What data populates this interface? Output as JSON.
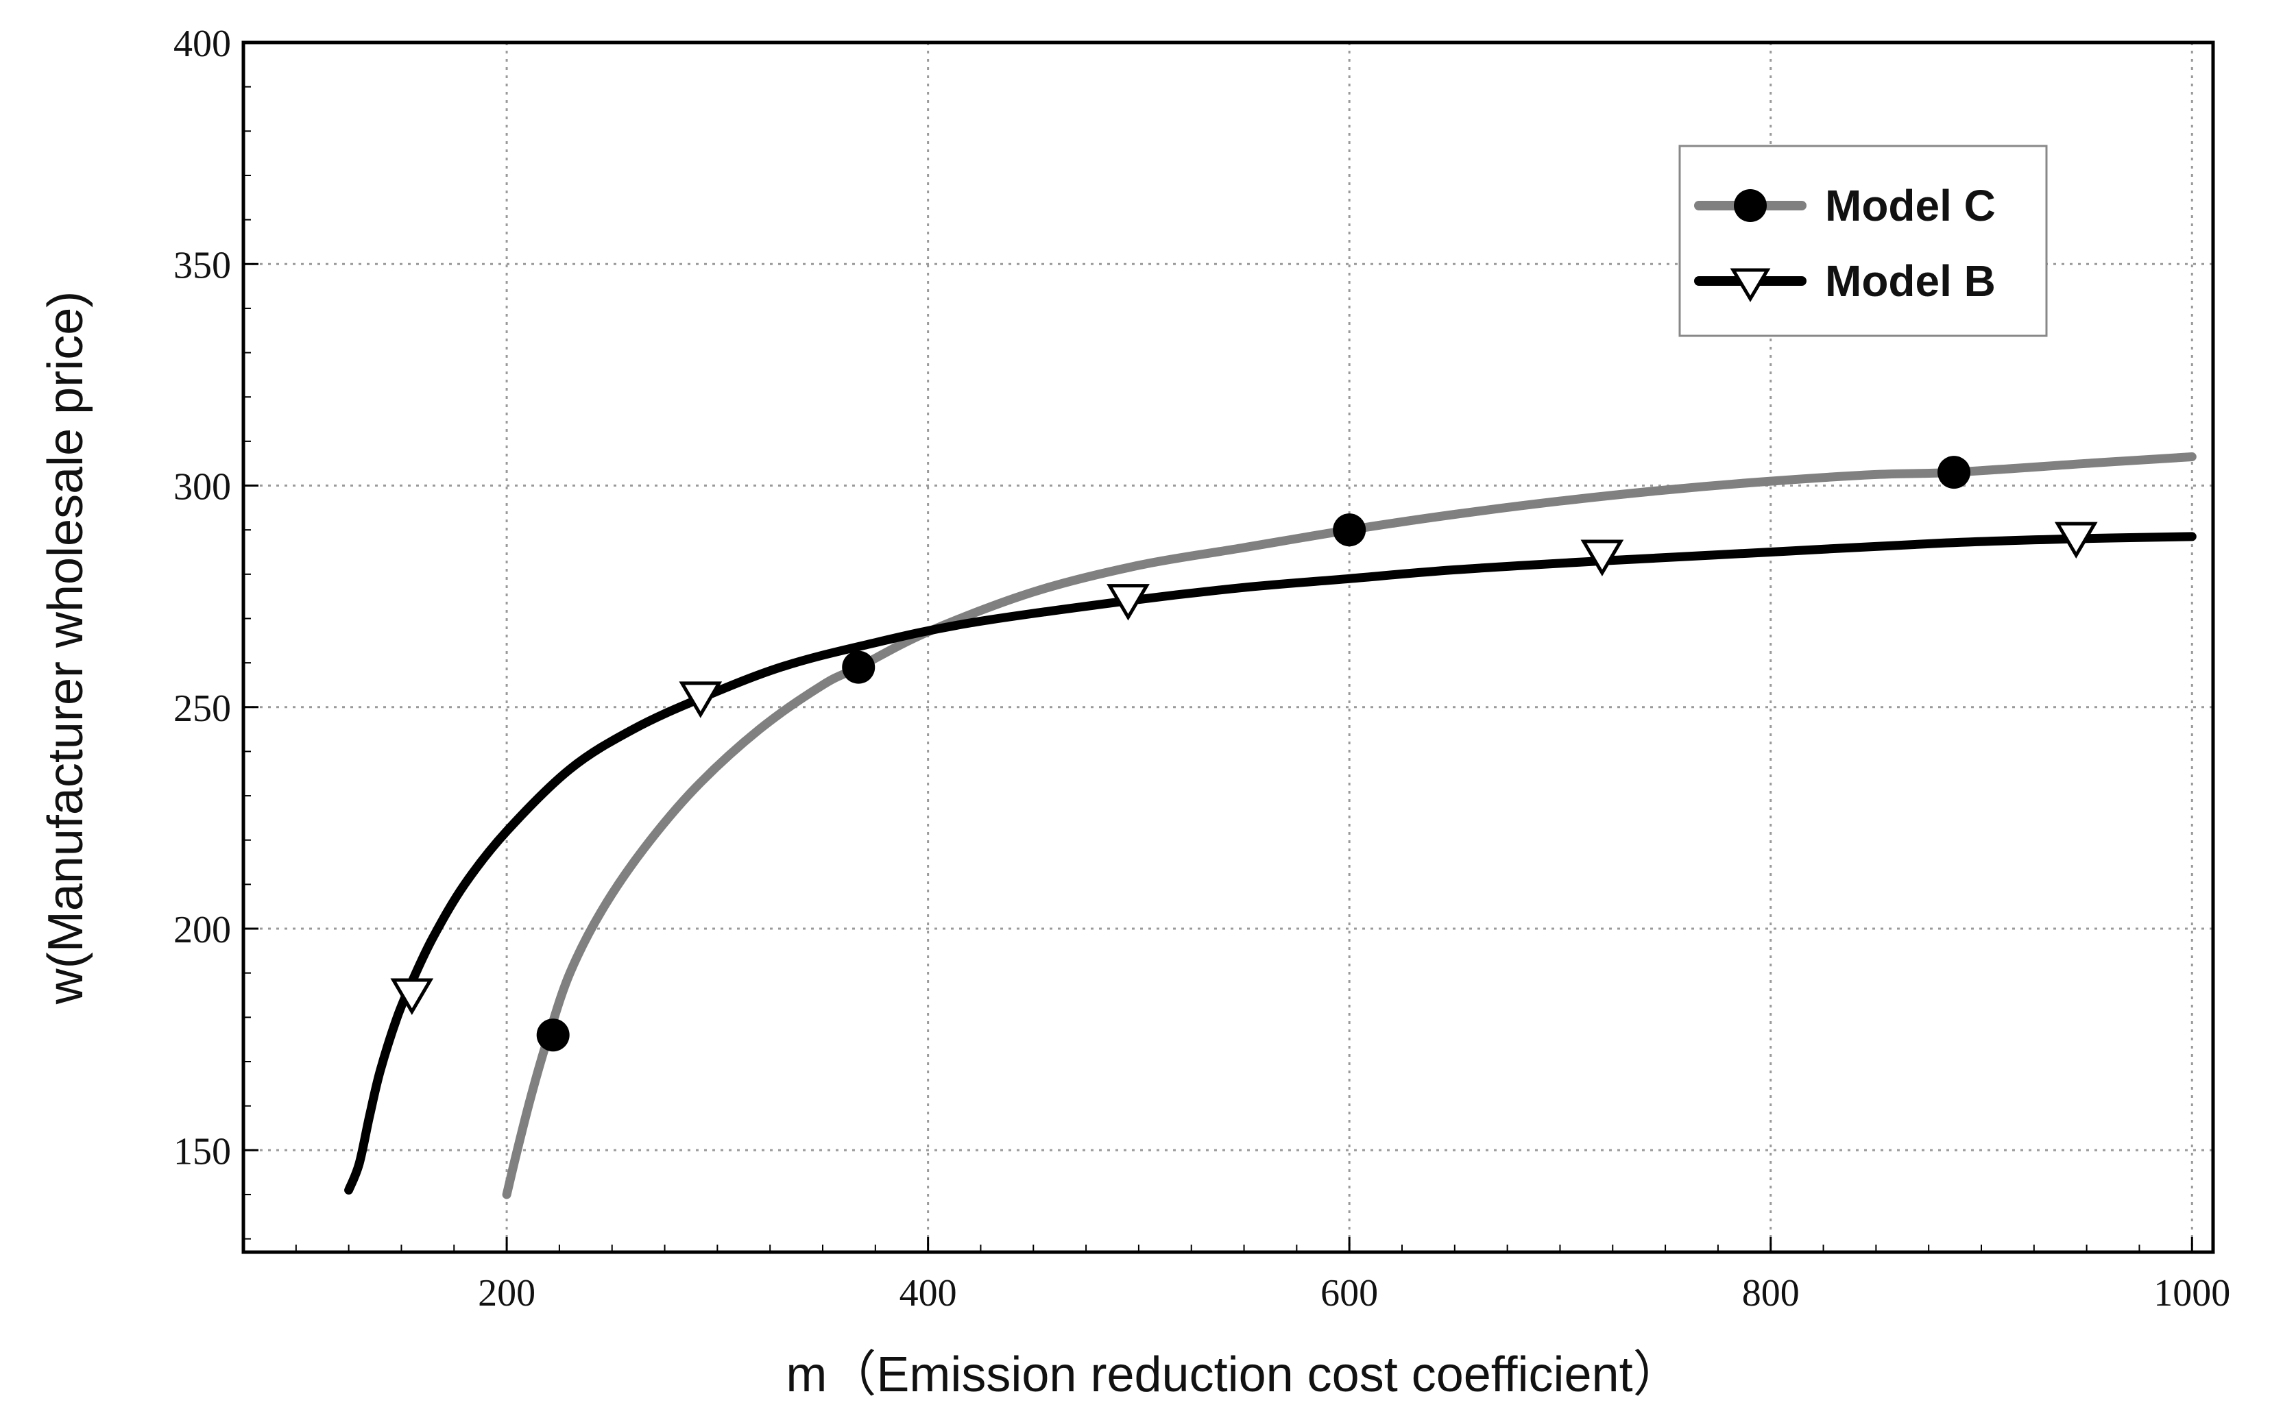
{
  "chart_data": {
    "type": "line",
    "title": "",
    "xlabel": "m（Emission reduction cost coefficient）",
    "ylabel": "w(Manufacturer wholesale price)",
    "xlim": [
      75,
      1010
    ],
    "ylim": [
      127,
      400
    ],
    "xticks": [
      200,
      400,
      600,
      800,
      1000
    ],
    "yticks": [
      150,
      200,
      250,
      300,
      350,
      400
    ],
    "xtick_labels": [
      "200",
      "400",
      "600",
      "800",
      "1000"
    ],
    "ytick_labels": [
      "150",
      "200",
      "250",
      "300",
      "350",
      "400"
    ],
    "grid": true,
    "legend_position": "top-right",
    "series": [
      {
        "name": "Model C",
        "color": "#808080",
        "marker": "circle",
        "curve": [
          [
            200,
            140
          ],
          [
            205,
            150
          ],
          [
            212,
            163
          ],
          [
            220,
            176
          ],
          [
            230,
            190
          ],
          [
            245,
            204
          ],
          [
            265,
            218
          ],
          [
            290,
            232
          ],
          [
            320,
            245
          ],
          [
            350,
            255
          ],
          [
            367,
            259
          ],
          [
            400,
            267
          ],
          [
            450,
            276
          ],
          [
            500,
            282
          ],
          [
            550,
            286
          ],
          [
            600,
            290
          ],
          [
            650,
            293.5
          ],
          [
            700,
            296.5
          ],
          [
            750,
            299
          ],
          [
            800,
            301
          ],
          [
            850,
            302.5
          ],
          [
            887,
            303
          ],
          [
            950,
            305
          ],
          [
            1000,
            306.5
          ]
        ],
        "markers": [
          [
            222,
            176
          ],
          [
            367,
            259
          ],
          [
            600,
            290
          ],
          [
            887,
            303
          ]
        ]
      },
      {
        "name": "Model B",
        "color": "#000000",
        "marker": "triangle-down",
        "curve": [
          [
            125,
            141
          ],
          [
            130,
            147
          ],
          [
            135,
            158
          ],
          [
            140,
            168
          ],
          [
            148,
            180
          ],
          [
            155,
            188
          ],
          [
            165,
            198
          ],
          [
            180,
            210
          ],
          [
            200,
            222
          ],
          [
            230,
            236
          ],
          [
            260,
            245
          ],
          [
            292,
            252
          ],
          [
            330,
            259
          ],
          [
            370,
            264
          ],
          [
            420,
            269
          ],
          [
            495,
            274
          ],
          [
            550,
            277
          ],
          [
            600,
            279
          ],
          [
            650,
            281
          ],
          [
            720,
            283
          ],
          [
            800,
            285
          ],
          [
            880,
            287
          ],
          [
            945,
            288
          ],
          [
            1000,
            288.5
          ]
        ],
        "markers": [
          [
            155,
            185
          ],
          [
            292,
            252
          ],
          [
            495,
            274
          ],
          [
            720,
            284
          ],
          [
            945,
            288
          ]
        ]
      }
    ]
  }
}
